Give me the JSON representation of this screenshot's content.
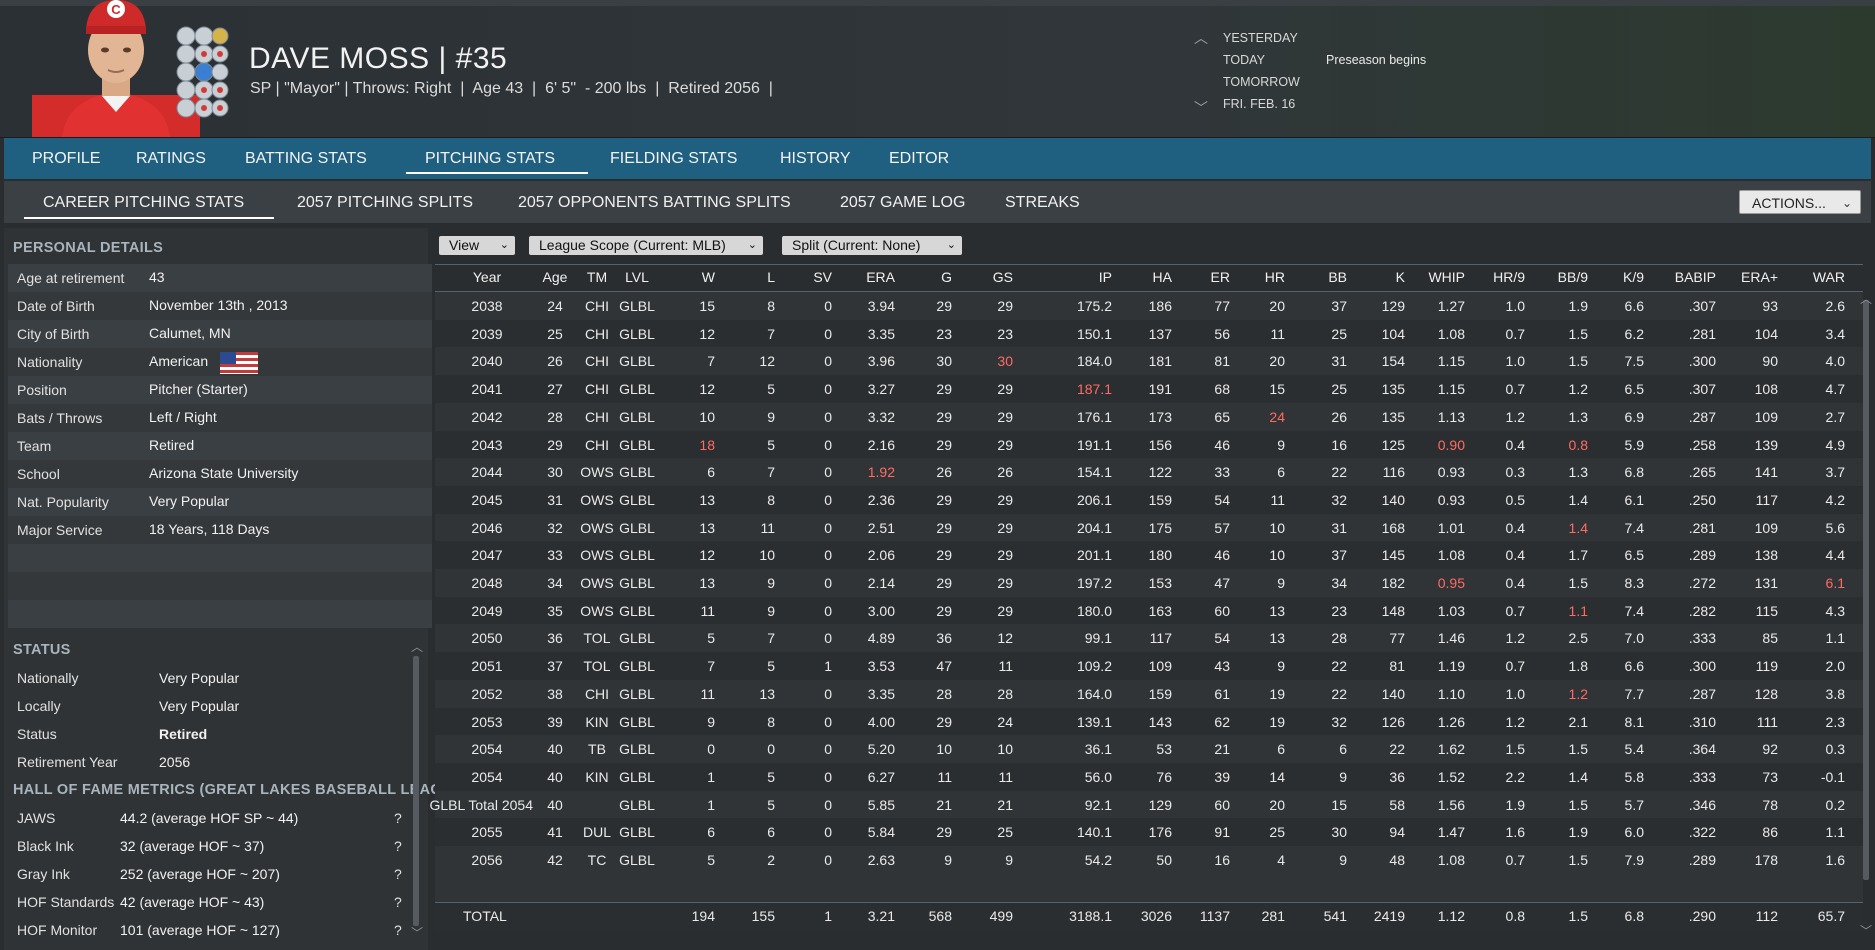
{
  "player": {
    "name": "DAVE MOSS",
    "separator": "|",
    "number": "#35",
    "info": "SP | \"Mayor\" | Throws: Right  |  Age 43  |  6' 5\"  - 200 lbs  |  Retired 2056  |"
  },
  "dates": {
    "yesterday": "YESTERDAY",
    "today": "TODAY",
    "tomorrow": "TOMORROW",
    "next": "FRI. FEB. 16",
    "today_event": "Preseason begins"
  },
  "nav": {
    "tabs": [
      "PROFILE",
      "RATINGS",
      "BATTING STATS",
      "PITCHING STATS",
      "FIELDING STATS",
      "HISTORY",
      "EDITOR"
    ],
    "active": "PITCHING STATS"
  },
  "subnav": {
    "tabs": [
      "CAREER PITCHING STATS",
      "2057 PITCHING SPLITS",
      "2057 OPPONENTS BATTING SPLITS",
      "2057 GAME LOG",
      "STREAKS"
    ],
    "active": "CAREER PITCHING STATS",
    "actions_label": "ACTIONS..."
  },
  "personal": {
    "title": "PERSONAL DETAILS",
    "rows": [
      {
        "label": "Age at retirement",
        "value": "43"
      },
      {
        "label": "Date of Birth",
        "value": "November 13th , 2013"
      },
      {
        "label": "City of Birth",
        "value": "Calumet, MN"
      },
      {
        "label": "Nationality",
        "value": "American"
      },
      {
        "label": "Position",
        "value": "Pitcher (Starter)"
      },
      {
        "label": "Bats / Throws",
        "value": "Left / Right"
      },
      {
        "label": "Team",
        "value": "Retired"
      },
      {
        "label": "School",
        "value": "Arizona State University"
      },
      {
        "label": "Nat. Popularity",
        "value": "Very Popular"
      },
      {
        "label": "Major Service",
        "value": "18 Years, 118 Days"
      }
    ]
  },
  "status": {
    "title": "STATUS",
    "rows": [
      {
        "label": "Nationally",
        "value": "Very Popular"
      },
      {
        "label": "Locally",
        "value": "Very Popular"
      },
      {
        "label": "Status",
        "value": "Retired"
      },
      {
        "label": "Retirement Year",
        "value": "2056"
      }
    ]
  },
  "hof": {
    "title": "HALL OF FAME METRICS (GREAT LAKES BASEBALL LEAGI",
    "help": "?",
    "rows": [
      {
        "label": "JAWS",
        "value": "44.2 (average HOF SP ~ 44)"
      },
      {
        "label": "Black Ink",
        "value": "32 (average HOF ~ 37)"
      },
      {
        "label": "Gray Ink",
        "value": "252 (average HOF ~ 207)"
      },
      {
        "label": "HOF Standards",
        "value": "42 (average HOF ~ 43)"
      },
      {
        "label": "HOF Monitor",
        "value": "101 (average HOF ~ 127)"
      }
    ]
  },
  "filters": {
    "view": "View",
    "scope": "League Scope (Current: MLB)",
    "split": "Split (Current: None)"
  },
  "table": {
    "columns": [
      "Year",
      "Age",
      "TM",
      "LVL",
      "W",
      "L",
      "SV",
      "ERA",
      "G",
      "GS",
      "IP",
      "HA",
      "ER",
      "HR",
      "BB",
      "K",
      "WHIP",
      "HR/9",
      "BB/9",
      "K/9",
      "BABIP",
      "ERA+",
      "WAR"
    ],
    "rows": [
      [
        "2038",
        "24",
        "CHI",
        "GLBL",
        "15",
        "8",
        "0",
        "3.94",
        "29",
        "29",
        "175.2",
        "186",
        "77",
        "20",
        "37",
        "129",
        "1.27",
        "1.0",
        "1.9",
        "6.6",
        ".307",
        "93",
        "2.6"
      ],
      [
        "2039",
        "25",
        "CHI",
        "GLBL",
        "12",
        "7",
        "0",
        "3.35",
        "23",
        "23",
        "150.1",
        "137",
        "56",
        "11",
        "25",
        "104",
        "1.08",
        "0.7",
        "1.5",
        "6.2",
        ".281",
        "104",
        "3.4"
      ],
      [
        "2040",
        "26",
        "CHI",
        "GLBL",
        "7",
        "12",
        "0",
        "3.96",
        "30",
        "30",
        "184.0",
        "181",
        "81",
        "20",
        "31",
        "154",
        "1.15",
        "1.0",
        "1.5",
        "7.5",
        ".300",
        "90",
        "4.0"
      ],
      [
        "2041",
        "27",
        "CHI",
        "GLBL",
        "12",
        "5",
        "0",
        "3.27",
        "29",
        "29",
        "187.1",
        "191",
        "68",
        "15",
        "25",
        "135",
        "1.15",
        "0.7",
        "1.2",
        "6.5",
        ".307",
        "108",
        "4.7"
      ],
      [
        "2042",
        "28",
        "CHI",
        "GLBL",
        "10",
        "9",
        "0",
        "3.32",
        "29",
        "29",
        "176.1",
        "173",
        "65",
        "24",
        "26",
        "135",
        "1.13",
        "1.2",
        "1.3",
        "6.9",
        ".287",
        "109",
        "2.7"
      ],
      [
        "2043",
        "29",
        "CHI",
        "GLBL",
        "18",
        "5",
        "0",
        "2.16",
        "29",
        "29",
        "191.1",
        "156",
        "46",
        "9",
        "16",
        "125",
        "0.90",
        "0.4",
        "0.8",
        "5.9",
        ".258",
        "139",
        "4.9"
      ],
      [
        "2044",
        "30",
        "OWS",
        "GLBL",
        "6",
        "7",
        "0",
        "1.92",
        "26",
        "26",
        "154.1",
        "122",
        "33",
        "6",
        "22",
        "116",
        "0.93",
        "0.3",
        "1.3",
        "6.8",
        ".265",
        "141",
        "3.7"
      ],
      [
        "2045",
        "31",
        "OWS",
        "GLBL",
        "13",
        "8",
        "0",
        "2.36",
        "29",
        "29",
        "206.1",
        "159",
        "54",
        "11",
        "32",
        "140",
        "0.93",
        "0.5",
        "1.4",
        "6.1",
        ".250",
        "117",
        "4.2"
      ],
      [
        "2046",
        "32",
        "OWS",
        "GLBL",
        "13",
        "11",
        "0",
        "2.51",
        "29",
        "29",
        "204.1",
        "175",
        "57",
        "10",
        "31",
        "168",
        "1.01",
        "0.4",
        "1.4",
        "7.4",
        ".281",
        "109",
        "5.6"
      ],
      [
        "2047",
        "33",
        "OWS",
        "GLBL",
        "12",
        "10",
        "0",
        "2.06",
        "29",
        "29",
        "201.1",
        "180",
        "46",
        "10",
        "37",
        "145",
        "1.08",
        "0.4",
        "1.7",
        "6.5",
        ".289",
        "138",
        "4.4"
      ],
      [
        "2048",
        "34",
        "OWS",
        "GLBL",
        "13",
        "9",
        "0",
        "2.14",
        "29",
        "29",
        "197.2",
        "153",
        "47",
        "9",
        "34",
        "182",
        "0.95",
        "0.4",
        "1.5",
        "8.3",
        ".272",
        "131",
        "6.1"
      ],
      [
        "2049",
        "35",
        "OWS",
        "GLBL",
        "11",
        "9",
        "0",
        "3.00",
        "29",
        "29",
        "180.0",
        "163",
        "60",
        "13",
        "23",
        "148",
        "1.03",
        "0.7",
        "1.1",
        "7.4",
        ".282",
        "115",
        "4.3"
      ],
      [
        "2050",
        "36",
        "TOL",
        "GLBL",
        "5",
        "7",
        "0",
        "4.89",
        "36",
        "12",
        "99.1",
        "117",
        "54",
        "13",
        "28",
        "77",
        "1.46",
        "1.2",
        "2.5",
        "7.0",
        ".333",
        "85",
        "1.1"
      ],
      [
        "2051",
        "37",
        "TOL",
        "GLBL",
        "7",
        "5",
        "1",
        "3.53",
        "47",
        "11",
        "109.2",
        "109",
        "43",
        "9",
        "22",
        "81",
        "1.19",
        "0.7",
        "1.8",
        "6.6",
        ".300",
        "119",
        "2.0"
      ],
      [
        "2052",
        "38",
        "CHI",
        "GLBL",
        "11",
        "13",
        "0",
        "3.35",
        "28",
        "28",
        "164.0",
        "159",
        "61",
        "19",
        "22",
        "140",
        "1.10",
        "1.0",
        "1.2",
        "7.7",
        ".287",
        "128",
        "3.8"
      ],
      [
        "2053",
        "39",
        "KIN",
        "GLBL",
        "9",
        "8",
        "0",
        "4.00",
        "29",
        "24",
        "139.1",
        "143",
        "62",
        "19",
        "32",
        "126",
        "1.26",
        "1.2",
        "2.1",
        "8.1",
        ".310",
        "111",
        "2.3"
      ],
      [
        "2054",
        "40",
        "TB",
        "GLBL",
        "0",
        "0",
        "0",
        "5.20",
        "10",
        "10",
        "36.1",
        "53",
        "21",
        "6",
        "6",
        "22",
        "1.62",
        "1.5",
        "1.5",
        "5.4",
        ".364",
        "92",
        "0.3"
      ],
      [
        "2054",
        "40",
        "KIN",
        "GLBL",
        "1",
        "5",
        "0",
        "6.27",
        "11",
        "11",
        "56.0",
        "76",
        "39",
        "14",
        "9",
        "36",
        "1.52",
        "2.2",
        "1.4",
        "5.8",
        ".333",
        "73",
        "-0.1"
      ],
      [
        "GLBL Total 2054",
        "40",
        "",
        "GLBL",
        "1",
        "5",
        "0",
        "5.85",
        "21",
        "21",
        "92.1",
        "129",
        "60",
        "20",
        "15",
        "58",
        "1.56",
        "1.9",
        "1.5",
        "5.7",
        ".346",
        "78",
        "0.2"
      ],
      [
        "2055",
        "41",
        "DUL",
        "GLBL",
        "6",
        "6",
        "0",
        "5.84",
        "29",
        "25",
        "140.1",
        "176",
        "91",
        "25",
        "30",
        "94",
        "1.47",
        "1.6",
        "1.9",
        "6.0",
        ".322",
        "86",
        "1.1"
      ],
      [
        "2056",
        "42",
        "TC",
        "GLBL",
        "5",
        "2",
        "0",
        "2.63",
        "9",
        "9",
        "54.2",
        "50",
        "16",
        "4",
        "9",
        "48",
        "1.08",
        "0.7",
        "1.5",
        "7.9",
        ".289",
        "178",
        "1.6"
      ]
    ],
    "highlights": [
      [
        2,
        9
      ],
      [
        3,
        10
      ],
      [
        4,
        13
      ],
      [
        5,
        4
      ],
      [
        5,
        16
      ],
      [
        5,
        18
      ],
      [
        6,
        7
      ],
      [
        8,
        18
      ],
      [
        10,
        16
      ],
      [
        10,
        22
      ],
      [
        11,
        18
      ],
      [
        14,
        18
      ]
    ],
    "total": [
      "TOTAL",
      "",
      "",
      "",
      "194",
      "155",
      "1",
      "3.21",
      "568",
      "499",
      "3188.1",
      "3026",
      "1137",
      "281",
      "541",
      "2419",
      "1.12",
      "0.8",
      "1.5",
      "6.8",
      ".290",
      "112",
      "65.7"
    ]
  },
  "colors": {
    "nav_bg": "#1f5f80",
    "highlight": "#ff6b62",
    "status_retired": "#f6a623"
  }
}
